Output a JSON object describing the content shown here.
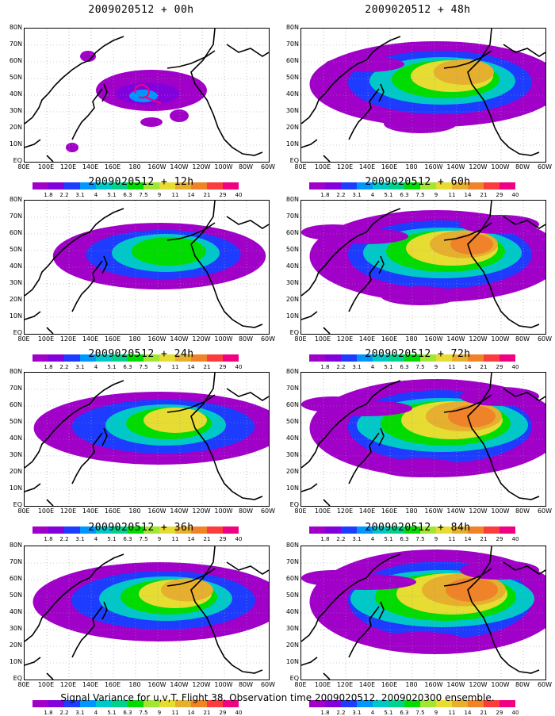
{
  "panels": [
    {
      "title": "2009020512 + 00h",
      "level": 0
    },
    {
      "title": "2009020512 + 48h",
      "level": 4
    },
    {
      "title": "2009020512 + 12h",
      "level": 1
    },
    {
      "title": "2009020512 + 60h",
      "level": 5
    },
    {
      "title": "2009020512 + 24h",
      "level": 2
    },
    {
      "title": "2009020512 + 72h",
      "level": 6
    },
    {
      "title": "2009020512 + 36h",
      "level": 3
    },
    {
      "title": "2009020512 + 84h",
      "level": 7
    }
  ],
  "lat_labels": [
    "80N",
    "70N",
    "60N",
    "50N",
    "40N",
    "30N",
    "20N",
    "10N",
    "EQ"
  ],
  "lon_labels": [
    "80E",
    "100E",
    "120E",
    "140E",
    "160E",
    "180",
    "160W",
    "140W",
    "120W",
    "100W",
    "80W",
    "60W"
  ],
  "colorbar": {
    "labels": [
      "1.8",
      "2.2",
      "3.1",
      "4",
      "5.1",
      "6.3",
      "7.5",
      "9",
      "11",
      "14",
      "21",
      "29",
      "40"
    ],
    "colors": [
      "#a000c8",
      "#8200dc",
      "#1e3cff",
      "#0096ff",
      "#00c8c8",
      "#00d28c",
      "#00dc00",
      "#a0e632",
      "#e6dc32",
      "#e6af2d",
      "#f08228",
      "#fa3c3c",
      "#f00082"
    ]
  },
  "caption": "Signal Variance for u,v,T. Flight 38. Observation time 2009020512. 2009020300 ensemble."
}
